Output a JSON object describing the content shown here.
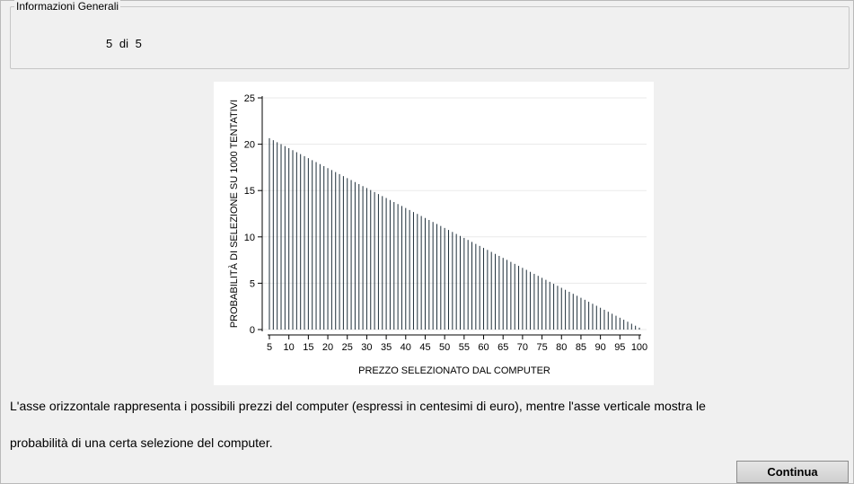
{
  "info": {
    "legend": "Informazioni Generali",
    "counter": "5  di  5"
  },
  "chart_data": {
    "type": "bar",
    "x_start": 5,
    "x_end": 100,
    "x_step": 1,
    "y_start": 20.65,
    "y_end": 0.2,
    "values_note": "",
    "xlabel": "PREZZO SELEZIONATO DAL COMPUTER",
    "ylabel": "PROBABILITÀ DI SELEZIONE SU 1000 TENTATIVI",
    "xlim": [
      5,
      100
    ],
    "ylim": [
      0,
      25
    ],
    "xticks": [
      "5",
      "10",
      "15",
      "20",
      "25",
      "30",
      "35",
      "40",
      "45",
      "50",
      "55",
      "60",
      "65",
      "70",
      "75",
      "80",
      "85",
      "90",
      "95",
      "100"
    ],
    "yticks": [
      "0",
      "5",
      "10",
      "15",
      "20",
      "25"
    ],
    "grid": true,
    "legend": "none"
  },
  "text": {
    "line1": "L'asse orizzontale rappresenta i possibili prezzi del computer (espressi in centesimi di euro), mentre l'asse verticale mostra le",
    "line2": "probabilità di una certa selezione del computer."
  },
  "buttons": {
    "continue_label": "Continua"
  }
}
